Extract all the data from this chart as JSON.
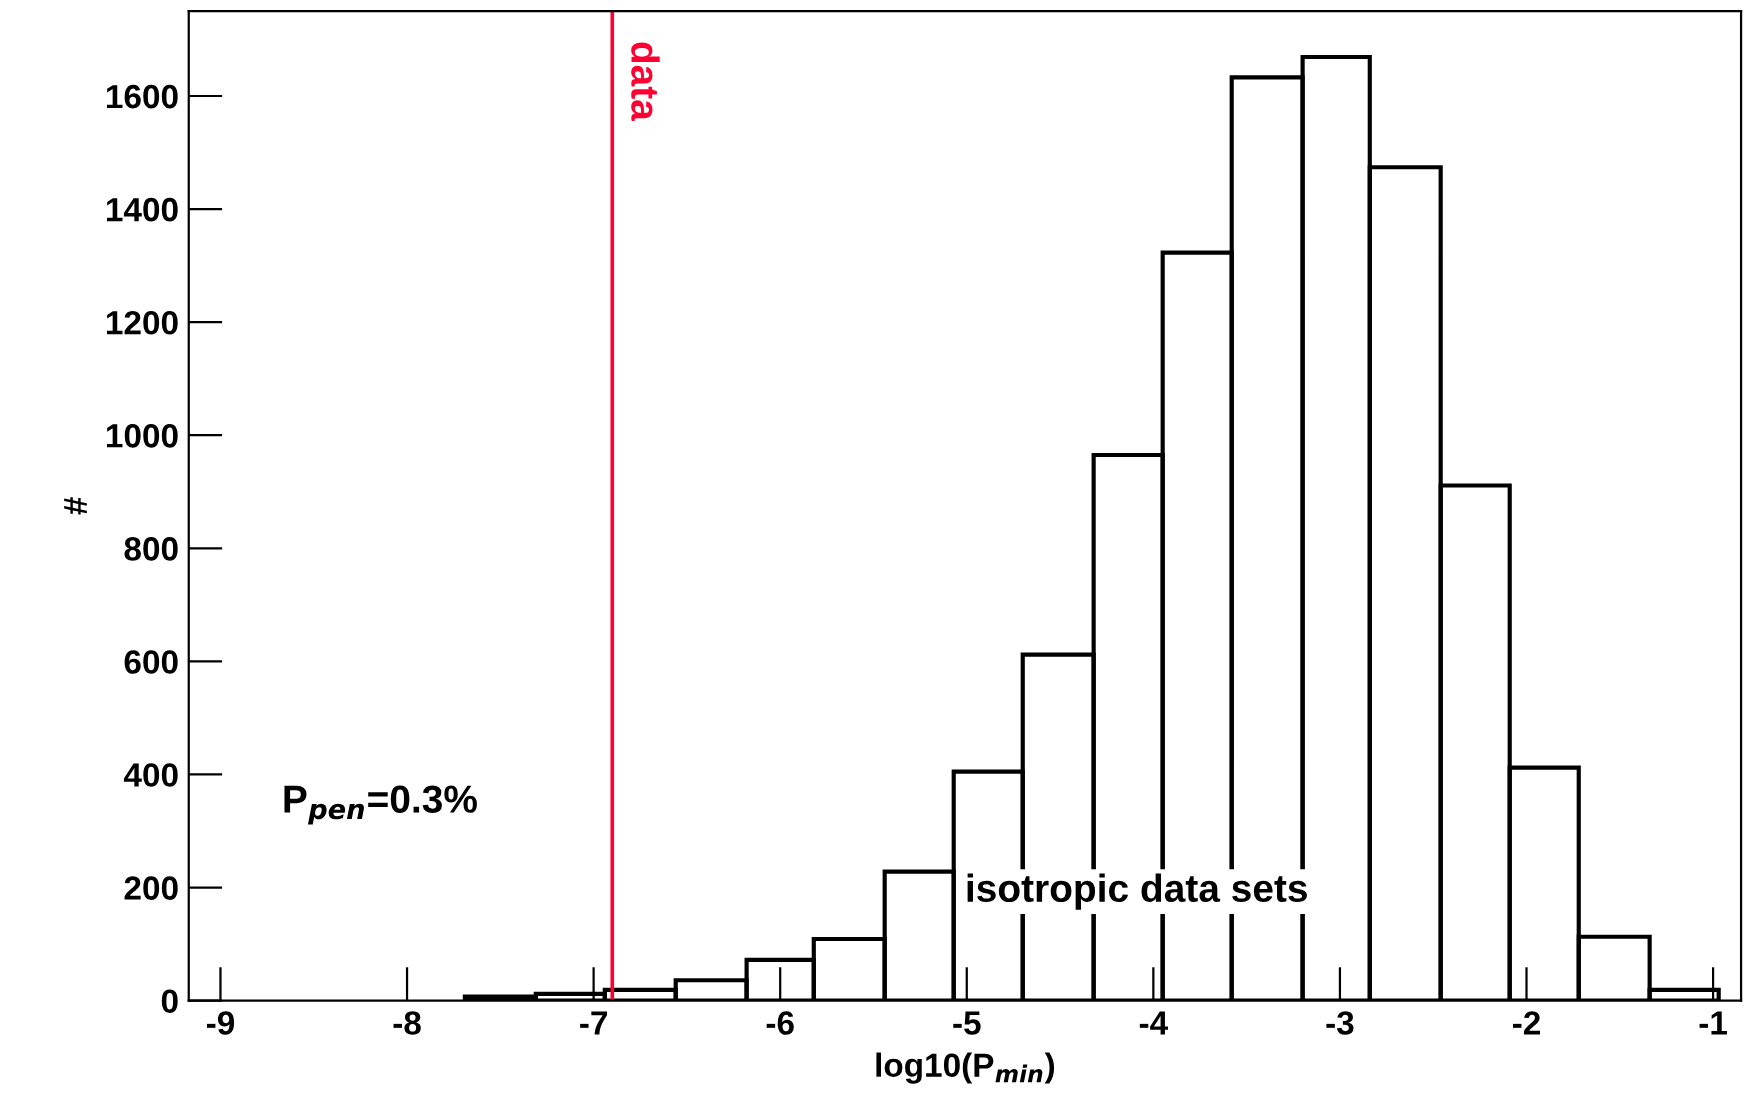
{
  "chart_data": {
    "type": "histogram",
    "xlabel": "log10(P$_{min}$)",
    "ylabel": "#",
    "bins": [
      -7.69,
      -7.31,
      -6.94,
      -6.56,
      -6.18,
      -5.82,
      -5.44,
      -5.07,
      -4.7,
      -4.32,
      -3.95,
      -3.58,
      -3.2,
      -2.84,
      -2.46,
      -2.09,
      -1.72,
      -1.34,
      -0.97
    ],
    "values": [
      7,
      12,
      19,
      36,
      72,
      109,
      228,
      405,
      612,
      965,
      1323,
      1633,
      1669,
      1474,
      911,
      412,
      113,
      19
    ],
    "color": "#000000",
    "xlim": [
      -9.17,
      -0.85
    ],
    "xticks": [
      -9,
      -8,
      -7,
      -6,
      -5,
      -4,
      -3,
      -2,
      -1
    ],
    "ylim": [
      0,
      1750
    ],
    "yticks": [
      0,
      200,
      400,
      600,
      800,
      1000,
      1200,
      1400,
      1600
    ],
    "ref_lines": [
      {
        "axis": "x",
        "value": -6.9,
        "label": "data",
        "color": "#ff0033"
      }
    ],
    "annotations": [
      "P$_{pen}$=0.3%",
      "isotropic data sets"
    ],
    "grid": false,
    "legend": false
  }
}
